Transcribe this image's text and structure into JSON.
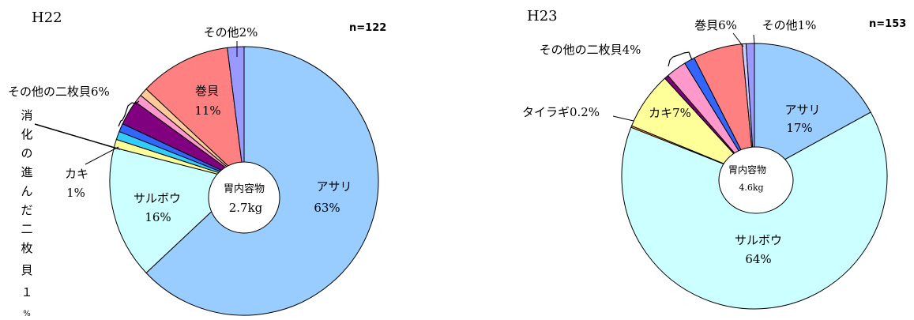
{
  "chart_data": [
    {
      "type": "pie",
      "title": "H22",
      "n_label": "n=122",
      "center": {
        "line1": "胃内容物",
        "line2": "2.7kg"
      },
      "slices": [
        {
          "name": "アサリ",
          "value": 63,
          "color": "#99ccff",
          "label": "アサリ",
          "pct": "63%"
        },
        {
          "name": "サルボウ",
          "value": 16,
          "color": "#ccffff",
          "label": "サルボウ",
          "pct": "16%"
        },
        {
          "name": "カキ",
          "value": 1,
          "color": "#ffff99",
          "label": "カキ",
          "pct": "1%"
        },
        {
          "name": "消化の進んだ二枚貝",
          "value": 1,
          "color": "#33ccff",
          "label": "消化の進んだ二枚貝",
          "pct": "1%"
        },
        {
          "name": "その他の二枚貝 (blue)",
          "value": 1,
          "color": "#3366ff",
          "label": "",
          "pct": ""
        },
        {
          "name": "その他の二枚貝 (purple)",
          "value": 3,
          "color": "#800080",
          "label": "",
          "pct": ""
        },
        {
          "name": "その他の二枚貝 (pink)",
          "value": 1,
          "color": "#ff99cc",
          "label": "",
          "pct": ""
        },
        {
          "name": "その他の二枚貝 (peach)",
          "value": 1,
          "color": "#ffcc99",
          "label": "",
          "pct": ""
        },
        {
          "name": "巻貝",
          "value": 11,
          "color": "#ff8080",
          "label": "巻貝",
          "pct": "11%"
        },
        {
          "name": "その他",
          "value": 2,
          "color": "#9999ff",
          "label": "その他",
          "pct": "2%"
        }
      ],
      "group_label": "その他の二枚貝6%",
      "callouts": {
        "other": "その他2%",
        "digested": "消化の進んだ二枚貝１%",
        "oyster_name": "カキ",
        "oyster_pct": "1%"
      }
    },
    {
      "type": "pie",
      "title": "H23",
      "n_label": "n=153",
      "center": {
        "line1": "胃内容物",
        "line2": "4.6kg"
      },
      "slices": [
        {
          "name": "アサリ",
          "value": 17,
          "color": "#99ccff",
          "label": "アサリ",
          "pct": "17%"
        },
        {
          "name": "サルボウ",
          "value": 64,
          "color": "#ccffff",
          "label": "サルボウ",
          "pct": "64%"
        },
        {
          "name": "タイラギ",
          "value": 0.2,
          "color": "#ff9900",
          "label": "タイラギ",
          "pct": "0.2%"
        },
        {
          "name": "カキ",
          "value": 7,
          "color": "#ffff99",
          "label": "カキ",
          "pct": "7%"
        },
        {
          "name": "その他の二枚貝 (purple)",
          "value": 0.5,
          "color": "#800080",
          "label": "",
          "pct": ""
        },
        {
          "name": "その他の二枚貝 (pink)",
          "value": 2.5,
          "color": "#ff99cc",
          "label": "",
          "pct": ""
        },
        {
          "name": "その他の二枚貝 (blue)",
          "value": 1.3,
          "color": "#3366ff",
          "label": "",
          "pct": ""
        },
        {
          "name": "巻貝",
          "value": 6,
          "color": "#ff8080",
          "label": "巻貝",
          "pct": "6%"
        },
        {
          "name": "その他 (light)",
          "value": 0.5,
          "color": "#ccccff",
          "label": "",
          "pct": ""
        },
        {
          "name": "その他",
          "value": 1,
          "color": "#9999ff",
          "label": "その他",
          "pct": "1%"
        }
      ],
      "group_label": "その他の二枚貝4%",
      "callouts": {
        "other": "その他1%",
        "snail": "巻貝6%",
        "oyster": "カキ7%",
        "tairagi": "タイラギ0.2%"
      }
    }
  ]
}
